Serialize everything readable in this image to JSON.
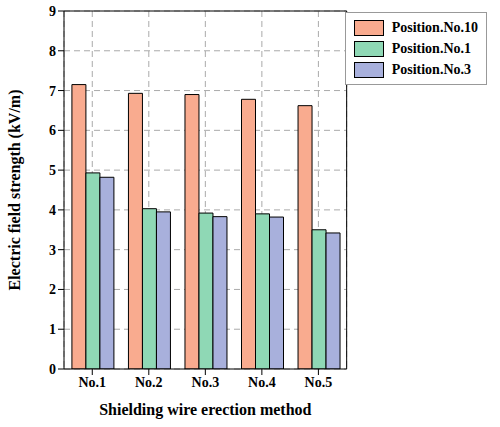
{
  "chart_data": {
    "type": "bar",
    "x_label": "Shielding wire erection method",
    "y_label": "Electric field strength (kV/m)",
    "categories": [
      "No.1",
      "No.2",
      "No.3",
      "No.4",
      "No.5"
    ],
    "series": [
      {
        "name": "Position.No.10",
        "color": "#f9ab8f",
        "values": [
          7.15,
          6.93,
          6.9,
          6.78,
          6.62
        ]
      },
      {
        "name": "Position.No.1",
        "color": "#8fd8b5",
        "values": [
          4.93,
          4.03,
          3.92,
          3.9,
          3.5
        ]
      },
      {
        "name": "Position.No.3",
        "color": "#a8b0dc",
        "values": [
          4.82,
          3.95,
          3.83,
          3.82,
          3.42
        ]
      }
    ],
    "ylim": [
      0,
      9
    ],
    "yticks": [
      0,
      1,
      2,
      3,
      4,
      5,
      6,
      7,
      8,
      9
    ],
    "grid": true,
    "legend": "top-right"
  }
}
